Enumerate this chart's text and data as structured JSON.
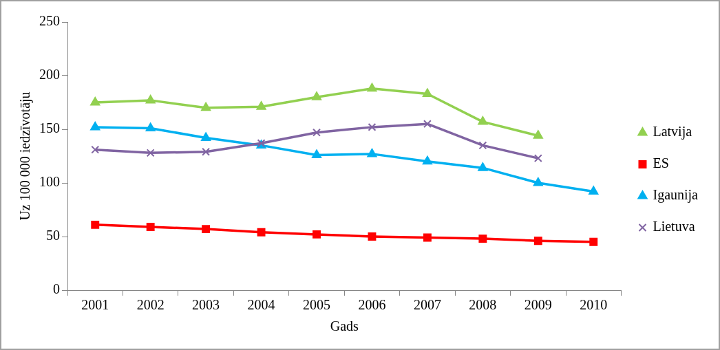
{
  "chart_data": {
    "type": "line",
    "xlabel": "Gads",
    "ylabel": "Uz 100 000 iedzīvotāju",
    "categories": [
      "2001",
      "2002",
      "2003",
      "2004",
      "2005",
      "2006",
      "2007",
      "2008",
      "2009",
      "2010"
    ],
    "series": [
      {
        "name": "Latvija",
        "color": "#92d050",
        "marker": "triangle",
        "values": [
          175,
          177,
          170,
          171,
          180,
          188,
          183,
          157,
          144,
          null
        ]
      },
      {
        "name": "ES",
        "color": "#ff0000",
        "marker": "square",
        "values": [
          61,
          59,
          57,
          54,
          52,
          50,
          49,
          48,
          46,
          45
        ]
      },
      {
        "name": "Igaunija",
        "color": "#00b0f0",
        "marker": "triangle",
        "values": [
          152,
          151,
          142,
          135,
          126,
          127,
          120,
          114,
          100,
          92
        ]
      },
      {
        "name": "Lietuva",
        "color": "#8064a2",
        "marker": "cross",
        "values": [
          131,
          128,
          129,
          137,
          147,
          152,
          155,
          135,
          123,
          null
        ]
      }
    ],
    "ylim": [
      0,
      250
    ],
    "yticks": [
      0,
      50,
      100,
      150,
      200,
      250
    ],
    "grid": false,
    "legend": "right"
  }
}
